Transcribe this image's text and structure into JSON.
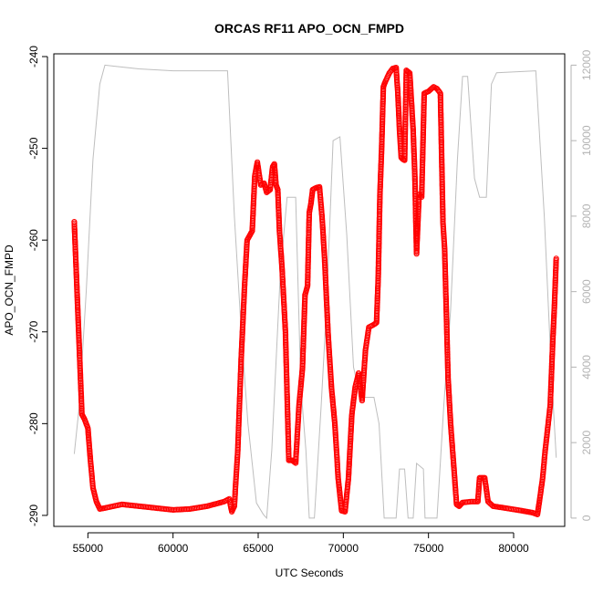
{
  "chart_data": {
    "type": "scatter",
    "title": "ORCAS RF11 APO_OCN_FMPD",
    "xlabel": "UTC Seconds",
    "ylabel": "APO_OCN_FMPD",
    "xlim": [
      53000,
      83000
    ],
    "ylim": [
      -291.2,
      -239.7
    ],
    "y2lim": [
      -220,
      12300
    ],
    "xticks": [
      "55000",
      "60000",
      "65000",
      "70000",
      "75000",
      "80000"
    ],
    "yticks": [
      "-240",
      "-250",
      "-260",
      "-270",
      "-280",
      "-290"
    ],
    "y2ticks": [
      "0",
      "2000",
      "4000",
      "6000",
      "8000",
      "10000",
      "12000"
    ],
    "grid": false,
    "colors": {
      "primary": "#ff0000",
      "secondary": "#bebebe"
    },
    "series": [
      {
        "axis": "left",
        "style": "points",
        "color": "#ff0000",
        "segments": [
          [
            [
              54200,
              -258
            ],
            [
              54350,
              -265
            ],
            [
              54500,
              -272
            ],
            [
              54650,
              -279
            ],
            [
              54800,
              -279.5
            ],
            [
              55000,
              -280.5
            ],
            [
              55150,
              -284
            ],
            [
              55300,
              -287
            ],
            [
              55500,
              -288.5
            ],
            [
              55700,
              -289.3
            ],
            [
              56000,
              -289.2
            ],
            [
              56500,
              -289
            ],
            [
              57000,
              -288.8
            ],
            [
              58000,
              -289
            ],
            [
              59000,
              -289.2
            ],
            [
              60000,
              -289.4
            ],
            [
              61000,
              -289.3
            ],
            [
              62000,
              -289
            ],
            [
              63000,
              -288.5
            ],
            [
              63300,
              -288.2
            ],
            [
              63450,
              -289.6
            ],
            [
              63600,
              -289
            ],
            [
              63800,
              -283
            ],
            [
              64000,
              -273
            ],
            [
              64200,
              -265
            ],
            [
              64350,
              -260
            ],
            [
              64500,
              -259.5
            ],
            [
              64650,
              -259
            ],
            [
              64800,
              -253
            ],
            [
              64950,
              -251.5
            ],
            [
              65150,
              -254
            ],
            [
              65350,
              -253.8
            ],
            [
              65500,
              -254.8
            ],
            [
              65700,
              -254.5
            ],
            [
              65850,
              -252
            ],
            [
              65950,
              -251.7
            ],
            [
              66050,
              -254
            ],
            [
              66150,
              -254.5
            ],
            [
              66250,
              -259
            ],
            [
              66400,
              -263
            ],
            [
              66600,
              -270
            ],
            [
              66800,
              -284
            ],
            [
              67000,
              -284
            ],
            [
              67200,
              -284.3
            ],
            [
              67400,
              -278
            ],
            [
              67600,
              -274
            ],
            [
              67750,
              -266
            ],
            [
              67900,
              -265
            ],
            [
              68000,
              -257
            ],
            [
              68100,
              -256
            ],
            [
              68200,
              -254.5
            ],
            [
              68400,
              -254.3
            ],
            [
              68600,
              -254.2
            ],
            [
              68750,
              -257.5
            ],
            [
              68900,
              -262
            ],
            [
              69100,
              -270
            ],
            [
              69300,
              -276
            ],
            [
              69500,
              -280
            ],
            [
              69700,
              -286
            ],
            [
              69900,
              -289.5
            ],
            [
              70100,
              -289.6
            ],
            [
              70300,
              -286
            ],
            [
              70500,
              -279
            ],
            [
              70700,
              -276
            ],
            [
              70900,
              -274.5
            ],
            [
              71100,
              -277.5
            ],
            [
              71300,
              -272
            ],
            [
              71500,
              -269.5
            ],
            [
              71800,
              -269.2
            ],
            [
              71950,
              -269
            ],
            [
              72050,
              -264
            ],
            [
              72150,
              -255
            ],
            [
              72250,
              -250
            ],
            [
              72350,
              -243.3
            ],
            [
              72450,
              -242.8
            ],
            [
              72700,
              -241.8
            ],
            [
              72900,
              -241.3
            ],
            [
              73100,
              -241.2
            ],
            [
              73200,
              -244
            ],
            [
              73300,
              -248
            ],
            [
              73400,
              -251
            ],
            [
              73500,
              -251.2
            ],
            [
              73600,
              -251.3
            ],
            [
              73700,
              -241.5
            ],
            [
              73900,
              -241.8
            ],
            [
              74100,
              -248
            ],
            [
              74200,
              -253
            ],
            [
              74300,
              -261.5
            ],
            [
              74450,
              -255
            ],
            [
              74600,
              -255.3
            ],
            [
              74750,
              -244
            ],
            [
              75000,
              -243.8
            ],
            [
              75300,
              -243.3
            ],
            [
              75500,
              -243.5
            ],
            [
              75700,
              -244
            ],
            [
              75850,
              -258
            ],
            [
              75950,
              -261
            ],
            [
              76050,
              -268
            ],
            [
              76150,
              -275
            ],
            [
              76300,
              -280
            ],
            [
              76500,
              -285
            ],
            [
              76650,
              -288.8
            ],
            [
              76800,
              -289
            ],
            [
              77000,
              -288.6
            ],
            [
              77500,
              -288.5
            ],
            [
              77900,
              -288.5
            ],
            [
              78000,
              -285.9
            ],
            [
              78300,
              -285.9
            ],
            [
              78500,
              -288.5
            ],
            [
              78800,
              -289
            ],
            [
              79500,
              -289.2
            ],
            [
              80500,
              -289.5
            ],
            [
              81100,
              -289.7
            ],
            [
              81400,
              -289.9
            ],
            [
              81550,
              -288
            ],
            [
              81700,
              -286
            ],
            [
              81850,
              -283
            ],
            [
              82000,
              -280.5
            ],
            [
              82150,
              -278
            ],
            [
              82300,
              -271
            ],
            [
              82400,
              -267
            ],
            [
              82500,
              -262
            ]
          ]
        ]
      },
      {
        "axis": "right",
        "style": "line",
        "color": "#bebebe",
        "segments": [
          [
            [
              54200,
              1700
            ],
            [
              54500,
              3000
            ],
            [
              54900,
              6000
            ],
            [
              55300,
              9500
            ],
            [
              55700,
              11500
            ],
            [
              56000,
              12000
            ],
            [
              58000,
              11900
            ],
            [
              60000,
              11850
            ],
            [
              63200,
              11850
            ],
            [
              63600,
              8000
            ],
            [
              64000,
              5000
            ],
            [
              64400,
              2500
            ],
            [
              64900,
              400
            ],
            [
              65300,
              100
            ],
            [
              65500,
              0
            ],
            [
              65800,
              1800
            ],
            [
              66300,
              6500
            ],
            [
              66700,
              8500
            ],
            [
              67200,
              8500
            ],
            [
              67500,
              3500
            ],
            [
              67800,
              1800
            ],
            [
              68000,
              0
            ],
            [
              68300,
              0
            ],
            [
              68700,
              3000
            ],
            [
              69000,
              5500
            ],
            [
              69400,
              10000
            ],
            [
              69800,
              10100
            ],
            [
              70200,
              7500
            ],
            [
              70600,
              4000
            ],
            [
              71000,
              3200
            ],
            [
              71800,
              3200
            ],
            [
              72100,
              2500
            ],
            [
              72400,
              0
            ],
            [
              73100,
              0
            ],
            [
              73300,
              1300
            ],
            [
              73600,
              1300
            ],
            [
              73800,
              0
            ],
            [
              74100,
              0
            ],
            [
              74300,
              1450
            ],
            [
              74700,
              1300
            ],
            [
              74800,
              0
            ],
            [
              75500,
              0
            ],
            [
              75900,
              3000
            ],
            [
              76300,
              5500
            ],
            [
              76700,
              9500
            ],
            [
              77000,
              11700
            ],
            [
              77300,
              11700
            ],
            [
              77700,
              9000
            ],
            [
              78000,
              8500
            ],
            [
              78400,
              8500
            ],
            [
              78700,
              11500
            ],
            [
              79000,
              11800
            ],
            [
              81300,
              11850
            ],
            [
              81800,
              8000
            ],
            [
              82200,
              4000
            ],
            [
              82500,
              1600
            ]
          ]
        ]
      }
    ]
  }
}
